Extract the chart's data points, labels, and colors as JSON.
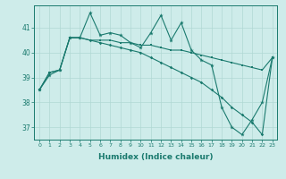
{
  "xlabel": "Humidex (Indice chaleur)",
  "x": [
    0,
    1,
    2,
    3,
    4,
    5,
    6,
    7,
    8,
    9,
    10,
    11,
    12,
    13,
    14,
    15,
    16,
    17,
    18,
    19,
    20,
    21,
    22,
    23
  ],
  "line1": [
    38.5,
    39.1,
    39.3,
    40.6,
    40.6,
    41.6,
    40.7,
    40.8,
    40.7,
    40.4,
    40.2,
    40.8,
    41.5,
    40.5,
    41.2,
    40.1,
    39.7,
    39.5,
    37.8,
    37.0,
    36.7,
    37.3,
    38.0,
    39.8
  ],
  "line2": [
    38.5,
    39.2,
    39.3,
    40.6,
    40.6,
    40.5,
    40.5,
    40.5,
    40.4,
    40.4,
    40.3,
    40.3,
    40.2,
    40.1,
    40.1,
    40.0,
    39.9,
    39.8,
    39.7,
    39.6,
    39.5,
    39.4,
    39.3,
    39.8
  ],
  "line3": [
    38.5,
    39.2,
    39.3,
    40.6,
    40.6,
    40.5,
    40.4,
    40.3,
    40.2,
    40.1,
    40.0,
    39.8,
    39.6,
    39.4,
    39.2,
    39.0,
    38.8,
    38.5,
    38.2,
    37.8,
    37.5,
    37.2,
    36.7,
    39.8
  ],
  "line_color": "#1a7a6e",
  "bg_color": "#ceecea",
  "grid_color": "#b0d8d4",
  "ylim": [
    36.5,
    41.9
  ],
  "yticks": [
    37,
    38,
    39,
    40,
    41
  ],
  "xticks": [
    0,
    1,
    2,
    3,
    4,
    5,
    6,
    7,
    8,
    9,
    10,
    11,
    12,
    13,
    14,
    15,
    16,
    17,
    18,
    19,
    20,
    21,
    22,
    23
  ]
}
